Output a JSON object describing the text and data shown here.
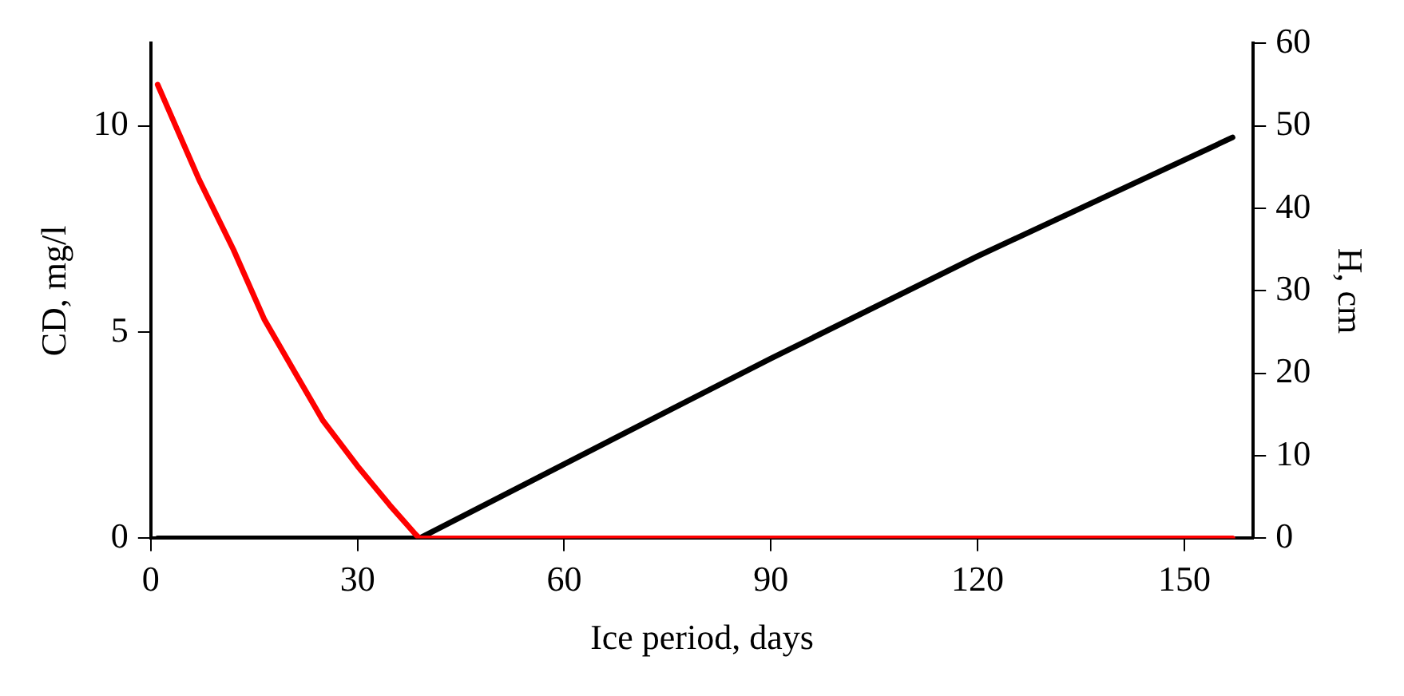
{
  "chart_data": {
    "type": "line",
    "xlabel": "Ice period, days",
    "ylabel": "CD, mg/l",
    "y2label": "H, cm",
    "xlim": [
      0,
      160
    ],
    "xticks": [
      0,
      30,
      60,
      90,
      120,
      150
    ],
    "ylim": [
      0,
      12
    ],
    "yticks": [
      0,
      5,
      10
    ],
    "y2lim": [
      0,
      60
    ],
    "y2ticks": [
      0,
      10,
      20,
      30,
      40,
      50,
      60
    ],
    "grid": false,
    "legend": false,
    "marker": "none",
    "line_style": "solid",
    "series": [
      {
        "color": "#ff0000",
        "x": [
          1,
          7,
          12,
          16.5,
          21,
          25,
          30,
          34.7,
          38.4,
          39,
          157
        ],
        "values": [
          11,
          8.7,
          7,
          5.3,
          4,
          2.85,
          1.75,
          0.8,
          0.1,
          0,
          0
        ]
      },
      {
        "color": "#000000",
        "axis": "y2",
        "x": [
          1,
          39,
          74.5,
          90,
          120,
          157
        ],
        "values": [
          0,
          0,
          15.2,
          21.8,
          34.2,
          48.6
        ]
      }
    ]
  }
}
